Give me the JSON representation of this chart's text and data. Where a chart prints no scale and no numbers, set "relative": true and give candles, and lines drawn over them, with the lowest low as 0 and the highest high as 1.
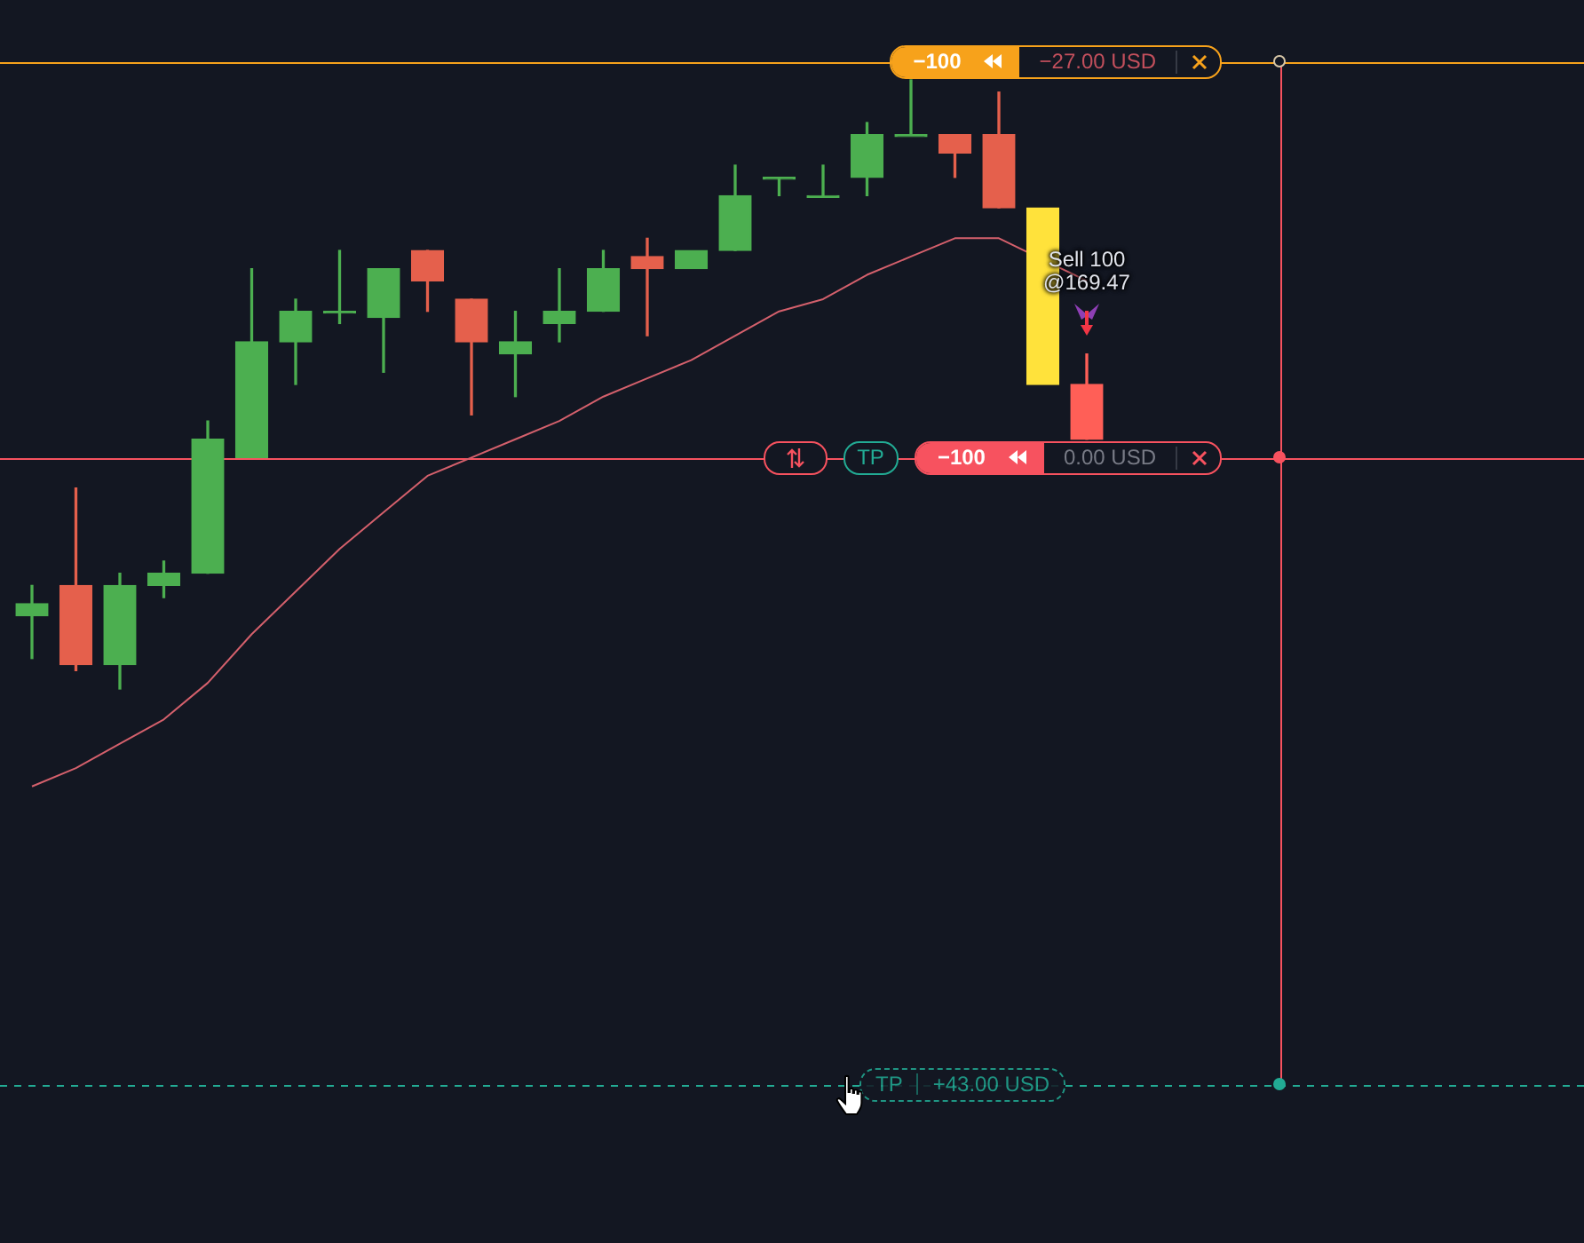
{
  "chart_data": {
    "type": "candlestick",
    "relative": true,
    "categories": [
      null,
      null,
      null,
      null,
      null,
      null,
      null,
      null,
      null,
      null,
      null,
      null,
      null,
      null,
      null,
      null,
      null,
      null,
      null,
      null,
      null,
      null,
      null,
      null,
      null
    ],
    "ohlc": [
      [
        0.12,
        0.17,
        0.05,
        0.14
      ],
      [
        0.17,
        0.33,
        0.03,
        0.04
      ],
      [
        0.04,
        0.19,
        0,
        0.17
      ],
      [
        0.17,
        0.21,
        0.15,
        0.19
      ],
      [
        0.19,
        0.44,
        0.19,
        0.41
      ],
      [
        0.38,
        0.69,
        0.38,
        0.57
      ],
      [
        0.57,
        0.64,
        0.5,
        0.62
      ],
      [
        0.62,
        0.72,
        0.6,
        0.62
      ],
      [
        0.61,
        0.69,
        0.52,
        0.69
      ],
      [
        0.72,
        0.72,
        0.62,
        0.67
      ],
      [
        0.64,
        0.64,
        0.45,
        0.57
      ],
      [
        0.55,
        0.62,
        0.48,
        0.57
      ],
      [
        0.6,
        0.69,
        0.57,
        0.62
      ],
      [
        0.62,
        0.72,
        0.62,
        0.69
      ],
      [
        0.71,
        0.74,
        0.58,
        0.69
      ],
      [
        0.69,
        0.72,
        0.69,
        0.72
      ],
      [
        0.72,
        0.86,
        0.72,
        0.81
      ],
      [
        0.84,
        0.84,
        0.81,
        0.84
      ],
      [
        0.81,
        0.86,
        0.81,
        0.81
      ],
      [
        0.84,
        0.93,
        0.81,
        0.91
      ],
      [
        0.91,
        1,
        0.91,
        0.91
      ],
      [
        0.91,
        0.91,
        0.84,
        0.88
      ],
      [
        0.91,
        0.98,
        0.79,
        0.79
      ],
      [
        0.79,
        0.79,
        0.5,
        0.5
      ],
      [
        0.5,
        0.55,
        0.41,
        0.41
      ]
    ],
    "colors": [
      "#4caf50",
      "#e5604c",
      "#4caf50",
      "#4caf50",
      "#4caf50",
      "#4caf50",
      "#4caf50",
      "#4caf50",
      "#4caf50",
      "#e5604c",
      "#e5604c",
      "#4caf50",
      "#4caf50",
      "#4caf50",
      "#e5604c",
      "#4caf50",
      "#4caf50",
      "#4caf50",
      "#4caf50",
      "#4caf50",
      "#4caf50",
      "#e5604c",
      "#e5604c",
      "#ffe23b",
      "#ff5f57"
    ],
    "series": [
      {
        "type": "line",
        "color": "#d4606c",
        "values": [
          -0.16,
          -0.13,
          -0.09,
          -0.05,
          0.01,
          0.09,
          0.16,
          0.23,
          0.29,
          0.35,
          0.38,
          0.41,
          0.44,
          0.48,
          0.51,
          0.54,
          0.58,
          0.62,
          0.64,
          0.68,
          0.71,
          0.74,
          0.74,
          null,
          0.67
        ]
      }
    ],
    "ref_lines": [
      {
        "axis": "y",
        "value": 1.03,
        "label": "−27.00 USD",
        "color": "#f7a21b"
      },
      {
        "axis": "y",
        "value": 0.38,
        "label": "0.00 USD",
        "color": "#f7525f"
      },
      {
        "axis": "y",
        "value": -0.65,
        "label": "+43.00 USD",
        "color": "#22ab94",
        "line_style": "dashed"
      }
    ],
    "annotations": [
      {
        "text": "−100",
        "y": 1.03
      },
      {
        "text": "−100",
        "y": 0.38
      },
      {
        "text": "TP",
        "y": 0.38
      },
      {
        "text": "TP",
        "y": -0.65
      },
      "Sell 100 @169.47"
    ]
  }
}
